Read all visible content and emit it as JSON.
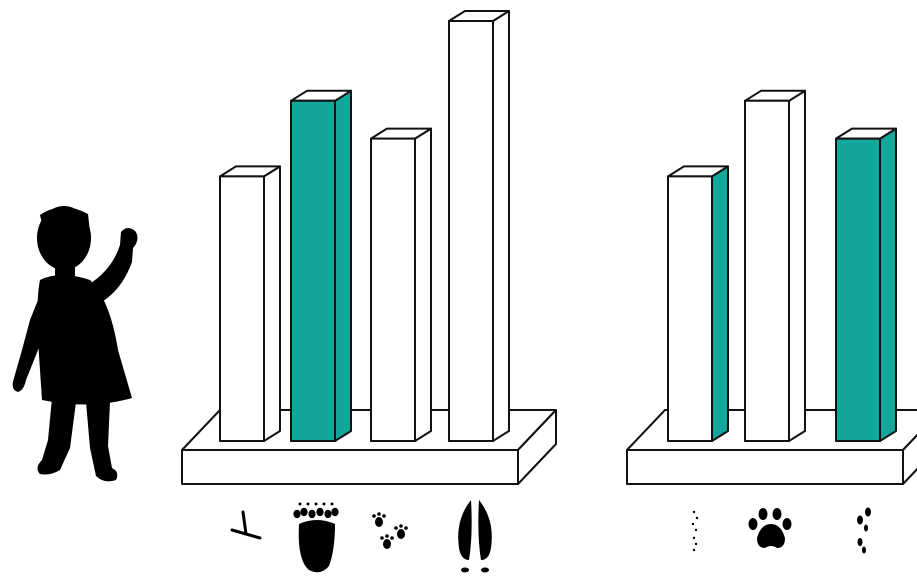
{
  "colors": {
    "accent": "#13a79b",
    "background": "#ffffff",
    "bar_plain": "#ffffff",
    "outline": "#111111",
    "silhouette": "#000000"
  },
  "figure": {
    "icon": "child-silhouette-icon"
  },
  "chart_data": [
    {
      "type": "bar",
      "style": "3d",
      "axes": "none",
      "grid": false,
      "legend": "none",
      "categories": [
        "bird",
        "bear",
        "small mammal",
        "deer"
      ],
      "category_icons": [
        "bird-track-icon",
        "bear-paw-track-icon",
        "small-mammal-track-icon",
        "deer-hoof-track-icon"
      ],
      "values": [
        6.3,
        8.1,
        7.2,
        10
      ],
      "highlight": [
        false,
        true,
        false,
        false
      ],
      "highlight_color": "#13a79b",
      "ylim": [
        0,
        10
      ],
      "ylabel": "",
      "xlabel": "",
      "title": ""
    },
    {
      "type": "bar",
      "style": "3d",
      "axes": "none",
      "grid": false,
      "legend": "none",
      "categories": [
        "mouse",
        "dog",
        "lizard"
      ],
      "category_icons": [
        "mouse-track-icon",
        "dog-paw-track-icon",
        "lizard-track-icon"
      ],
      "values": [
        6.3,
        8.1,
        7.2
      ],
      "highlight": [
        "side",
        false,
        true
      ],
      "highlight_color": "#13a79b",
      "ylim": [
        0,
        10
      ],
      "ylabel": "",
      "xlabel": "",
      "title": ""
    }
  ]
}
